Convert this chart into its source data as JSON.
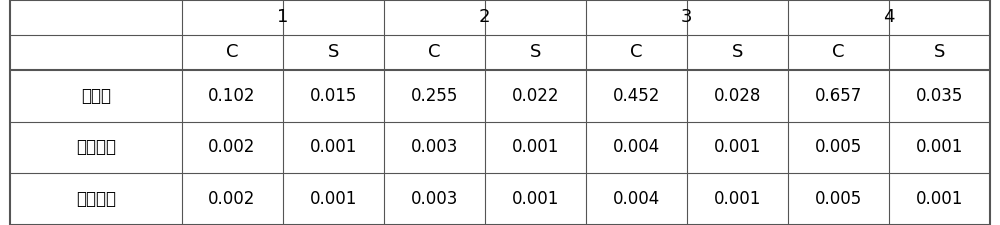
{
  "header_row1_labels": [
    "1",
    "2",
    "3",
    "4"
  ],
  "header_row2": [
    "",
    "C",
    "S",
    "C",
    "S",
    "C",
    "S",
    "C",
    "S"
  ],
  "data_rows": [
    [
      "标准值",
      "0.102",
      "0.015",
      "0.255",
      "0.022",
      "0.452",
      "0.028",
      "0.657",
      "0.035"
    ],
    [
      "标准偏差",
      "0.002",
      "0.001",
      "0.003",
      "0.001",
      "0.004",
      "0.001",
      "0.005",
      "0.001"
    ],
    [
      "不确定度",
      "0.002",
      "0.001",
      "0.003",
      "0.001",
      "0.004",
      "0.001",
      "0.005",
      "0.001"
    ]
  ],
  "background_color": "#ffffff",
  "border_color": "#555555",
  "text_color": "#000000",
  "font_size": 12,
  "header_font_size": 13
}
